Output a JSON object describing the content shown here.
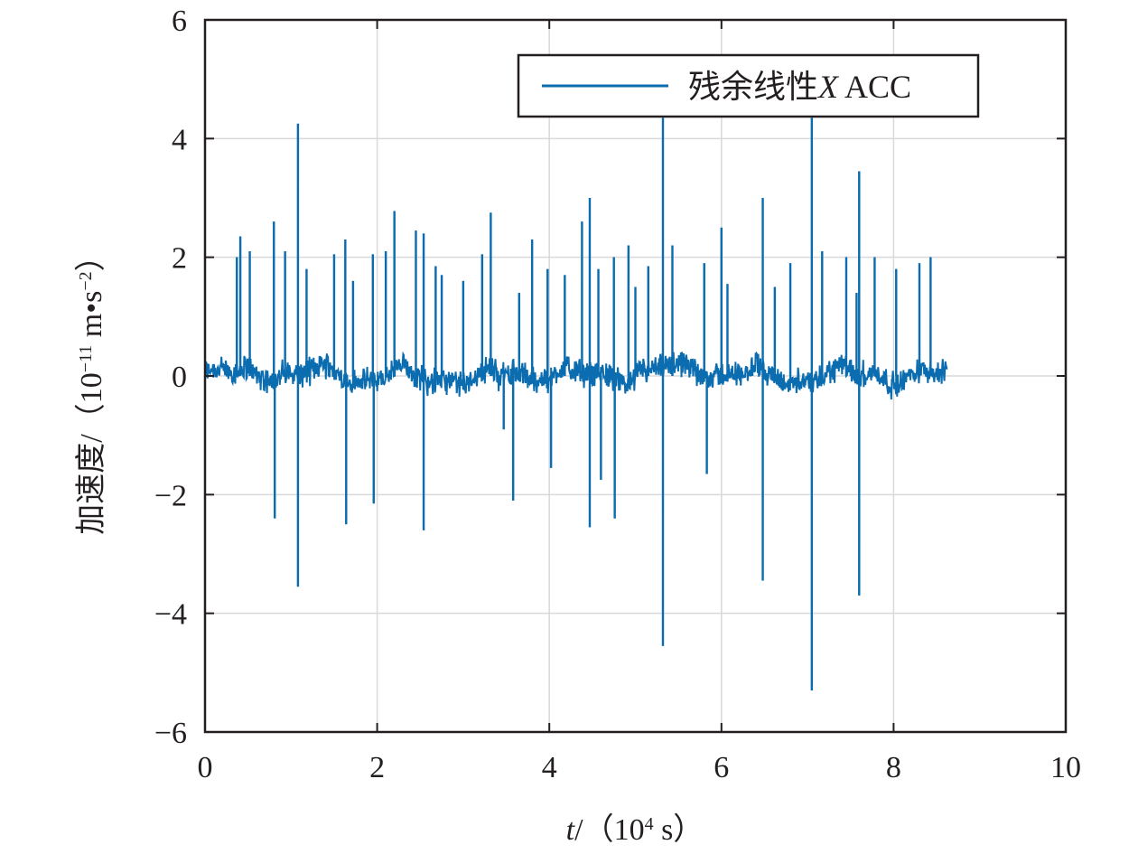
{
  "chart_data": {
    "type": "line",
    "xlabel": {
      "var": "t",
      "rest": "/（10",
      "sup": "4",
      "tail": " s）"
    },
    "ylabel": {
      "main": "加速度/（10",
      "sup1": "−11",
      "mid": " m•s",
      "sup2": "−2",
      "tail": "）"
    },
    "xlim": [
      0,
      10
    ],
    "ylim": [
      -6,
      6
    ],
    "xticks": [
      0,
      2,
      4,
      6,
      8,
      10
    ],
    "xtick_labels": [
      "0",
      "2",
      "4",
      "6",
      "8",
      "10"
    ],
    "yticks": [
      -6,
      -4,
      -2,
      0,
      2,
      4,
      6
    ],
    "ytick_labels": [
      "−6",
      "−4",
      "−2",
      "0",
      "2",
      "4",
      "6"
    ],
    "grid": true,
    "legend": {
      "position": "top-right",
      "entries": [
        "残余线性X ACC"
      ],
      "label_prefix": "残余线性",
      "label_italic": "X",
      "label_suffix": " ACC"
    },
    "series": [
      {
        "name": "残余线性X ACC",
        "color": "#0b6db0",
        "x_range": [
          0,
          8.62
        ],
        "baseline_noise_amplitude": 0.3,
        "spikes": [
          {
            "x": 0.37,
            "y": 2.0
          },
          {
            "x": 0.41,
            "y": 2.35
          },
          {
            "x": 0.52,
            "y": 2.1
          },
          {
            "x": 0.8,
            "y": 2.6
          },
          {
            "x": 0.81,
            "y": -2.4
          },
          {
            "x": 0.93,
            "y": 2.1
          },
          {
            "x": 1.08,
            "y": 4.25
          },
          {
            "x": 1.08,
            "y": -3.55
          },
          {
            "x": 1.18,
            "y": 1.8
          },
          {
            "x": 1.5,
            "y": 2.05
          },
          {
            "x": 1.63,
            "y": 2.3
          },
          {
            "x": 1.64,
            "y": -2.5
          },
          {
            "x": 1.72,
            "y": 1.6
          },
          {
            "x": 1.95,
            "y": 2.05
          },
          {
            "x": 1.96,
            "y": -2.15
          },
          {
            "x": 2.1,
            "y": 2.1
          },
          {
            "x": 2.2,
            "y": 2.78
          },
          {
            "x": 2.45,
            "y": 2.45
          },
          {
            "x": 2.54,
            "y": 2.4
          },
          {
            "x": 2.54,
            "y": -2.6
          },
          {
            "x": 2.68,
            "y": 1.85
          },
          {
            "x": 2.75,
            "y": 1.7
          },
          {
            "x": 3.0,
            "y": 1.6
          },
          {
            "x": 3.22,
            "y": 2.05
          },
          {
            "x": 3.32,
            "y": 2.75
          },
          {
            "x": 3.47,
            "y": -0.9
          },
          {
            "x": 3.58,
            "y": -2.1
          },
          {
            "x": 3.65,
            "y": 1.4
          },
          {
            "x": 3.8,
            "y": 2.3
          },
          {
            "x": 3.98,
            "y": 1.8
          },
          {
            "x": 4.02,
            "y": -1.55
          },
          {
            "x": 4.18,
            "y": 1.7
          },
          {
            "x": 4.38,
            "y": 2.6
          },
          {
            "x": 4.47,
            "y": 3.0
          },
          {
            "x": 4.47,
            "y": -2.55
          },
          {
            "x": 4.57,
            "y": 1.8
          },
          {
            "x": 4.6,
            "y": -1.75
          },
          {
            "x": 4.75,
            "y": 2.0
          },
          {
            "x": 4.76,
            "y": -2.4
          },
          {
            "x": 4.92,
            "y": 2.2
          },
          {
            "x": 5.0,
            "y": 1.5
          },
          {
            "x": 5.15,
            "y": 1.85
          },
          {
            "x": 5.32,
            "y": 4.35
          },
          {
            "x": 5.32,
            "y": -4.55
          },
          {
            "x": 5.43,
            "y": 2.2
          },
          {
            "x": 5.8,
            "y": 1.9
          },
          {
            "x": 5.83,
            "y": -1.65
          },
          {
            "x": 6.0,
            "y": 2.5
          },
          {
            "x": 6.07,
            "y": 1.55
          },
          {
            "x": 6.48,
            "y": 3.0
          },
          {
            "x": 6.48,
            "y": -3.45
          },
          {
            "x": 6.62,
            "y": 1.5
          },
          {
            "x": 6.8,
            "y": 1.9
          },
          {
            "x": 7.05,
            "y": 4.35
          },
          {
            "x": 7.05,
            "y": -5.3
          },
          {
            "x": 7.17,
            "y": 2.1
          },
          {
            "x": 7.45,
            "y": 2.0
          },
          {
            "x": 7.57,
            "y": 1.4
          },
          {
            "x": 7.6,
            "y": 3.45
          },
          {
            "x": 7.6,
            "y": -3.7
          },
          {
            "x": 7.78,
            "y": 2.0
          },
          {
            "x": 8.03,
            "y": 1.8
          },
          {
            "x": 8.3,
            "y": 1.9
          },
          {
            "x": 8.43,
            "y": 2.0
          }
        ]
      }
    ]
  }
}
